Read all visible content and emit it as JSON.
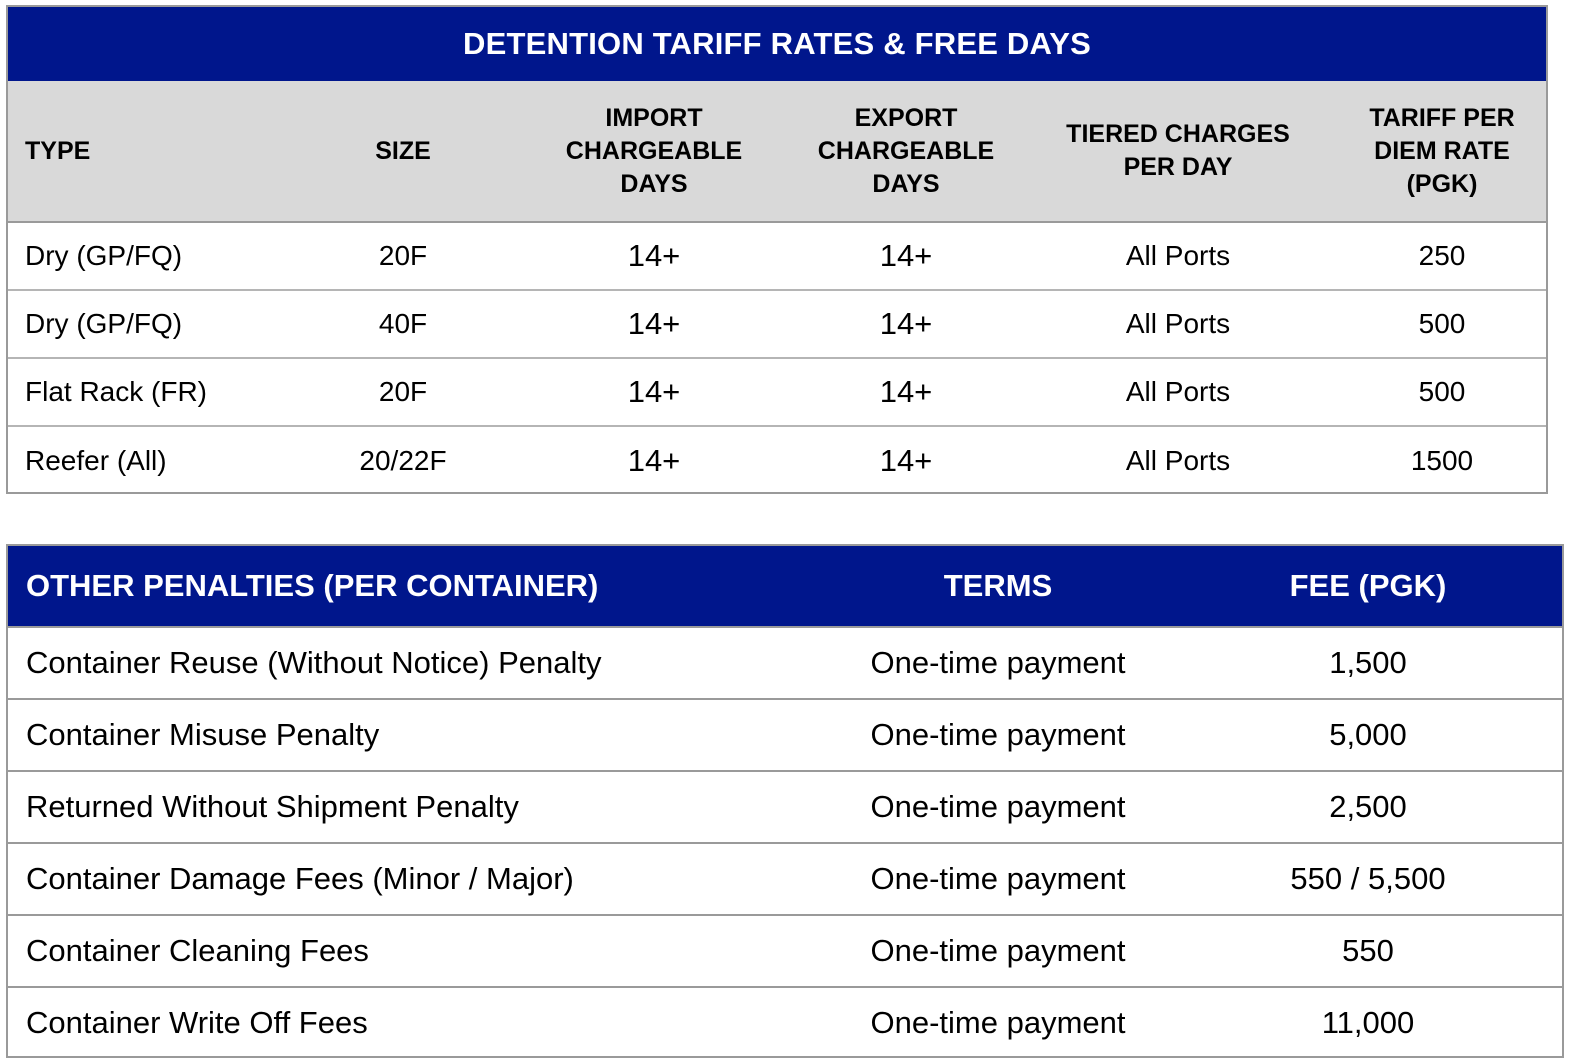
{
  "tariff_table": {
    "title": "DETENTION TARIFF RATES & FREE DAYS",
    "headers": {
      "type": "TYPE",
      "size": "SIZE",
      "import": "IMPORT\nCHARGEABLE\nDAYS",
      "export": "EXPORT\nCHARGEABLE\nDAYS",
      "tiered": "TIERED CHARGES\nPER DAY",
      "rate": "TARIFF PER\nDIEM RATE\n(PGK)"
    },
    "rows": [
      {
        "type": "Dry (GP/FQ)",
        "size": "20F",
        "import": "14+",
        "export": "14+",
        "tiered": "All Ports",
        "rate": "250"
      },
      {
        "type": "Dry (GP/FQ)",
        "size": "40F",
        "import": "14+",
        "export": "14+",
        "tiered": "All Ports",
        "rate": "500"
      },
      {
        "type": "Flat Rack (FR)",
        "size": "20F",
        "import": "14+",
        "export": "14+",
        "tiered": "All Ports",
        "rate": "500"
      },
      {
        "type": "Reefer (All)",
        "size": "20/22F",
        "import": "14+",
        "export": "14+",
        "tiered": "All Ports",
        "rate": "1500"
      }
    ]
  },
  "penalties_table": {
    "headers": {
      "penalty": "OTHER PENALTIES (PER CONTAINER)",
      "terms": "TERMS",
      "fee": "FEE (PGK)"
    },
    "rows": [
      {
        "penalty": "Container Reuse (Without Notice) Penalty",
        "terms": "One-time payment",
        "fee": "1,500"
      },
      {
        "penalty": "Container Misuse Penalty",
        "terms": "One-time payment",
        "fee": "5,000"
      },
      {
        "penalty": "Returned Without Shipment Penalty",
        "terms": "One-time payment",
        "fee": "2,500"
      },
      {
        "penalty": "Container Damage Fees (Minor / Major)",
        "terms": "One-time payment",
        "fee": "550 / 5,500"
      },
      {
        "penalty": "Container Cleaning Fees",
        "terms": "One-time payment",
        "fee": "550"
      },
      {
        "penalty": "Container Write Off Fees",
        "terms": "One-time payment",
        "fee": "11,000"
      }
    ]
  },
  "colors": {
    "header_blue": "#00168c",
    "subheader_gray": "#d9d9d9",
    "border_gray": "#9a9a9a"
  }
}
